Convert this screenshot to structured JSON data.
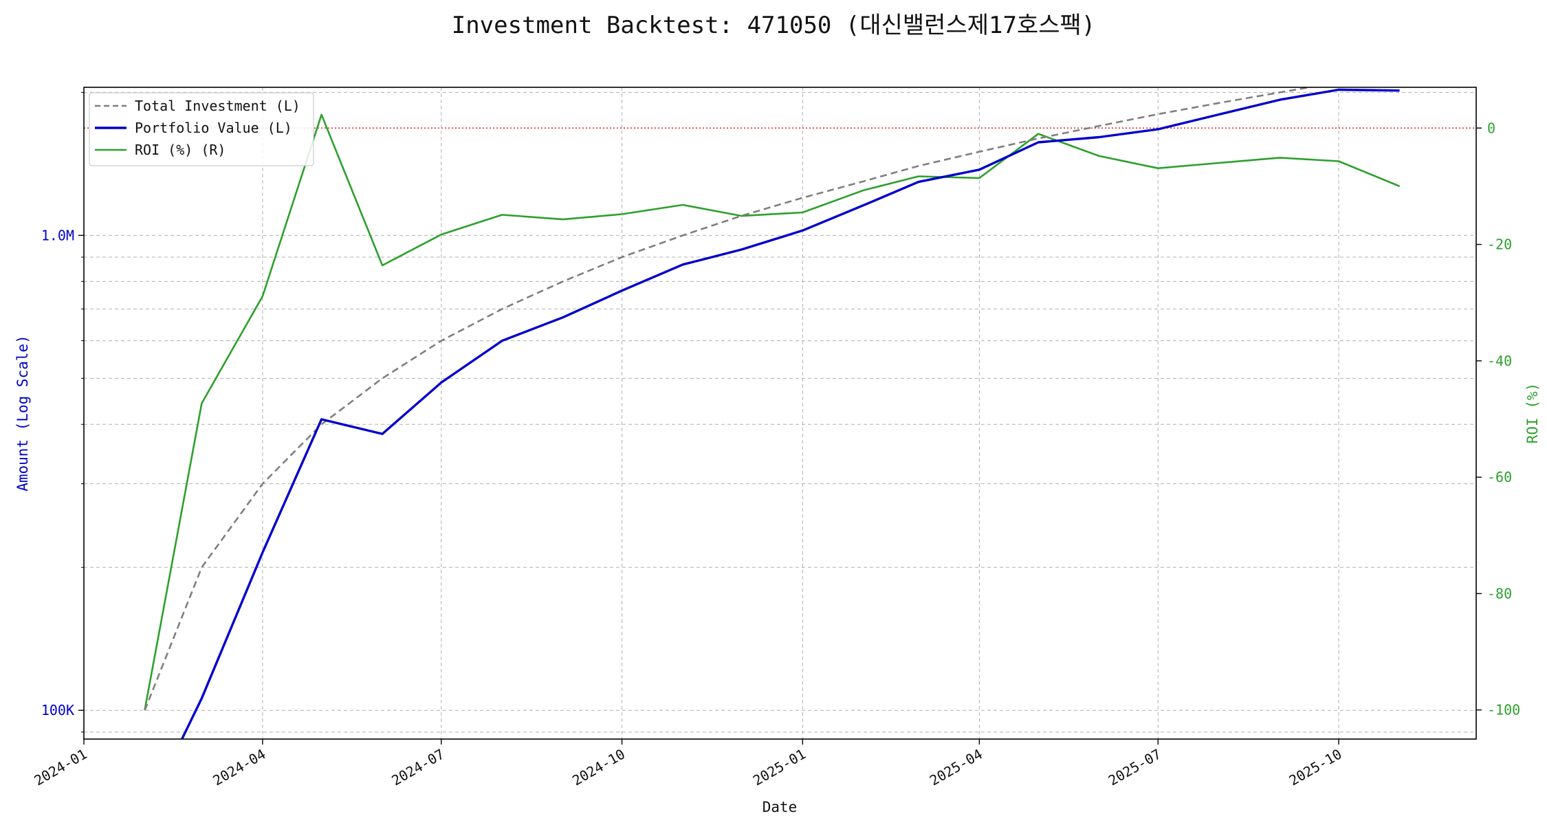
{
  "chart_data": {
    "type": "line",
    "title": "Investment Backtest: 471050 (대신밸런스제17호스팩)",
    "xlabel": "Date",
    "ylabel_left": "Amount (Log Scale)",
    "ylabel_right": "ROI (%)",
    "left_scale": "log",
    "x_ticks": [
      "2024-01",
      "2024-04",
      "2024-07",
      "2024-10",
      "2025-01",
      "2025-04",
      "2025-07",
      "2025-10"
    ],
    "x_range": [
      "2024-01-01",
      "2025-12-10"
    ],
    "left_ticks": [
      {
        "value": 100000,
        "label": "100K"
      },
      {
        "value": 1000000,
        "label": "1.0M"
      }
    ],
    "left_range": [
      87000,
      2050000
    ],
    "right_ticks": [
      0,
      -20,
      -40,
      -60,
      -80,
      -100
    ],
    "right_range": [
      -105,
      7
    ],
    "reference_line": {
      "axis": "right",
      "value": 0,
      "color": "#d62728",
      "style": "dotted"
    },
    "grid": true,
    "legend_position": "top-left",
    "dates": [
      "2024-02-01",
      "2024-03-01",
      "2024-04-01",
      "2024-05-01",
      "2024-06-01",
      "2024-07-01",
      "2024-08-01",
      "2024-09-01",
      "2024-10-01",
      "2024-11-01",
      "2024-12-01",
      "2025-01-01",
      "2025-02-01",
      "2025-03-01",
      "2025-04-01",
      "2025-05-01",
      "2025-06-01",
      "2025-07-01",
      "2025-08-01",
      "2025-09-01",
      "2025-10-01",
      "2025-11-01"
    ],
    "series": [
      {
        "name": "Total Investment (L)",
        "axis": "left",
        "color": "#7f7f7f",
        "style": "dashed",
        "values": [
          100000,
          200000,
          300000,
          400000,
          500000,
          600000,
          700000,
          800000,
          900000,
          1000000,
          1100000,
          1200000,
          1300000,
          1400000,
          1500000,
          1600000,
          1700000,
          1800000,
          1900000,
          2000000,
          2100000,
          2200000
        ]
      },
      {
        "name": "Portfolio Value (L)",
        "axis": "left",
        "color": "#0000cc",
        "style": "solid",
        "values": [
          60000,
          106000,
          215000,
          410000,
          382000,
          490000,
          600000,
          672000,
          765000,
          868000,
          934000,
          1024000,
          1157000,
          1296000,
          1375000,
          1570000,
          1610000,
          1673000,
          1797000,
          1930000,
          2026000,
          2018000
        ]
      },
      {
        "name": "ROI (%) (R)",
        "axis": "right",
        "color": "#2ca02c",
        "style": "solid",
        "values": [
          -100,
          -47.3,
          -28.9,
          2.3,
          -23.6,
          -18.3,
          -14.9,
          -15.7,
          -14.8,
          -13.2,
          -15.1,
          -14.5,
          -10.7,
          -8.3,
          -8.6,
          -1.0,
          -4.8,
          -6.9,
          -6.0,
          -5.1,
          -5.7,
          -10.0
        ]
      }
    ]
  }
}
